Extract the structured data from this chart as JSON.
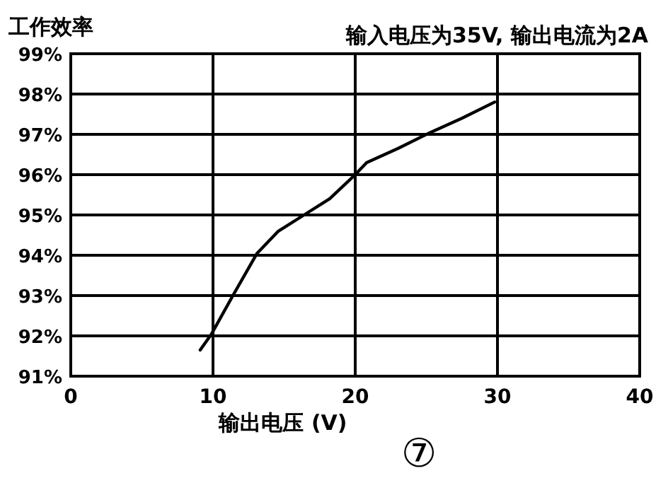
{
  "chart_data": {
    "type": "line",
    "title": "输入电压为35V, 输出电流为2A",
    "ylabel": "工作效率",
    "xlabel": "输出电压 (V)",
    "annotations": [
      "⑦"
    ],
    "series": [
      {
        "color": "#000000",
        "x": [
          9.1,
          9.9,
          11.4,
          13.1,
          14.6,
          16.4,
          18.2,
          20,
          20.8,
          23,
          25.3,
          27.5,
          29.8
        ],
        "values": [
          91.65,
          92.05,
          93.0,
          94.05,
          94.6,
          95.0,
          95.4,
          96.0,
          96.3,
          96.65,
          97.05,
          97.4,
          97.8
        ]
      }
    ],
    "xlim": [
      0,
      40
    ],
    "xticks": [
      0,
      10,
      20,
      30,
      40
    ],
    "ylim": [
      91,
      99
    ],
    "yticks": [
      {
        "value": 91,
        "label": "91%"
      },
      {
        "value": 92,
        "label": "92%"
      },
      {
        "value": 93,
        "label": "93%"
      },
      {
        "value": 94,
        "label": "94%"
      },
      {
        "value": 95,
        "label": "95%"
      },
      {
        "value": 96,
        "label": "96%"
      },
      {
        "value": 97,
        "label": "97%"
      },
      {
        "value": 98,
        "label": "98%"
      },
      {
        "value": 99,
        "label": "99%"
      }
    ],
    "grid": true,
    "marker": "none",
    "line_style": "solid"
  }
}
